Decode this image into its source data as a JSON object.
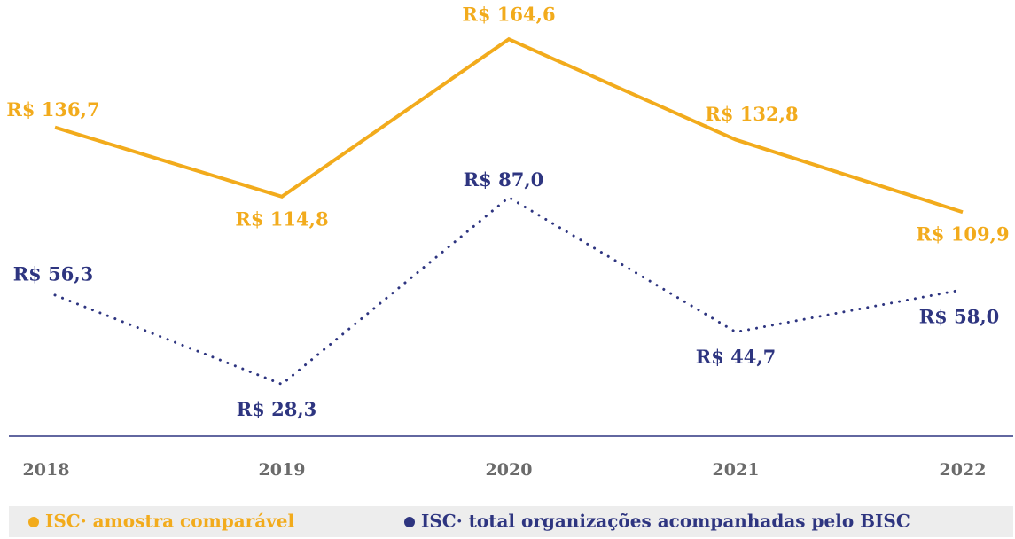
{
  "chart_data": {
    "type": "line",
    "categories": [
      "2018",
      "2019",
      "2020",
      "2021",
      "2022"
    ],
    "ylim": [
      39,
      177
    ],
    "y2lim": [
      12,
      149
    ],
    "series": [
      {
        "name": "ISC· amostra comparável",
        "color": "#f2ab1c",
        "line_style": "solid",
        "values": [
          136.7,
          114.8,
          164.6,
          132.8,
          109.9
        ],
        "value_labels": [
          "R$ 136,7",
          "R$ 114,8",
          "R$ 164,6",
          "R$ 132,8",
          "R$ 109,9"
        ]
      },
      {
        "name": "ISC· total organizações acompanhadas pelo BISC",
        "color": "#2e3580",
        "line_style": "dotted",
        "axis": "y2",
        "values": [
          56.3,
          28.3,
          87.0,
          44.7,
          58.0
        ],
        "value_labels": [
          "R$ 56,3",
          "R$ 28,3",
          "R$ 87,0",
          "R$ 44,7",
          "R$ 58,0"
        ]
      }
    ]
  }
}
